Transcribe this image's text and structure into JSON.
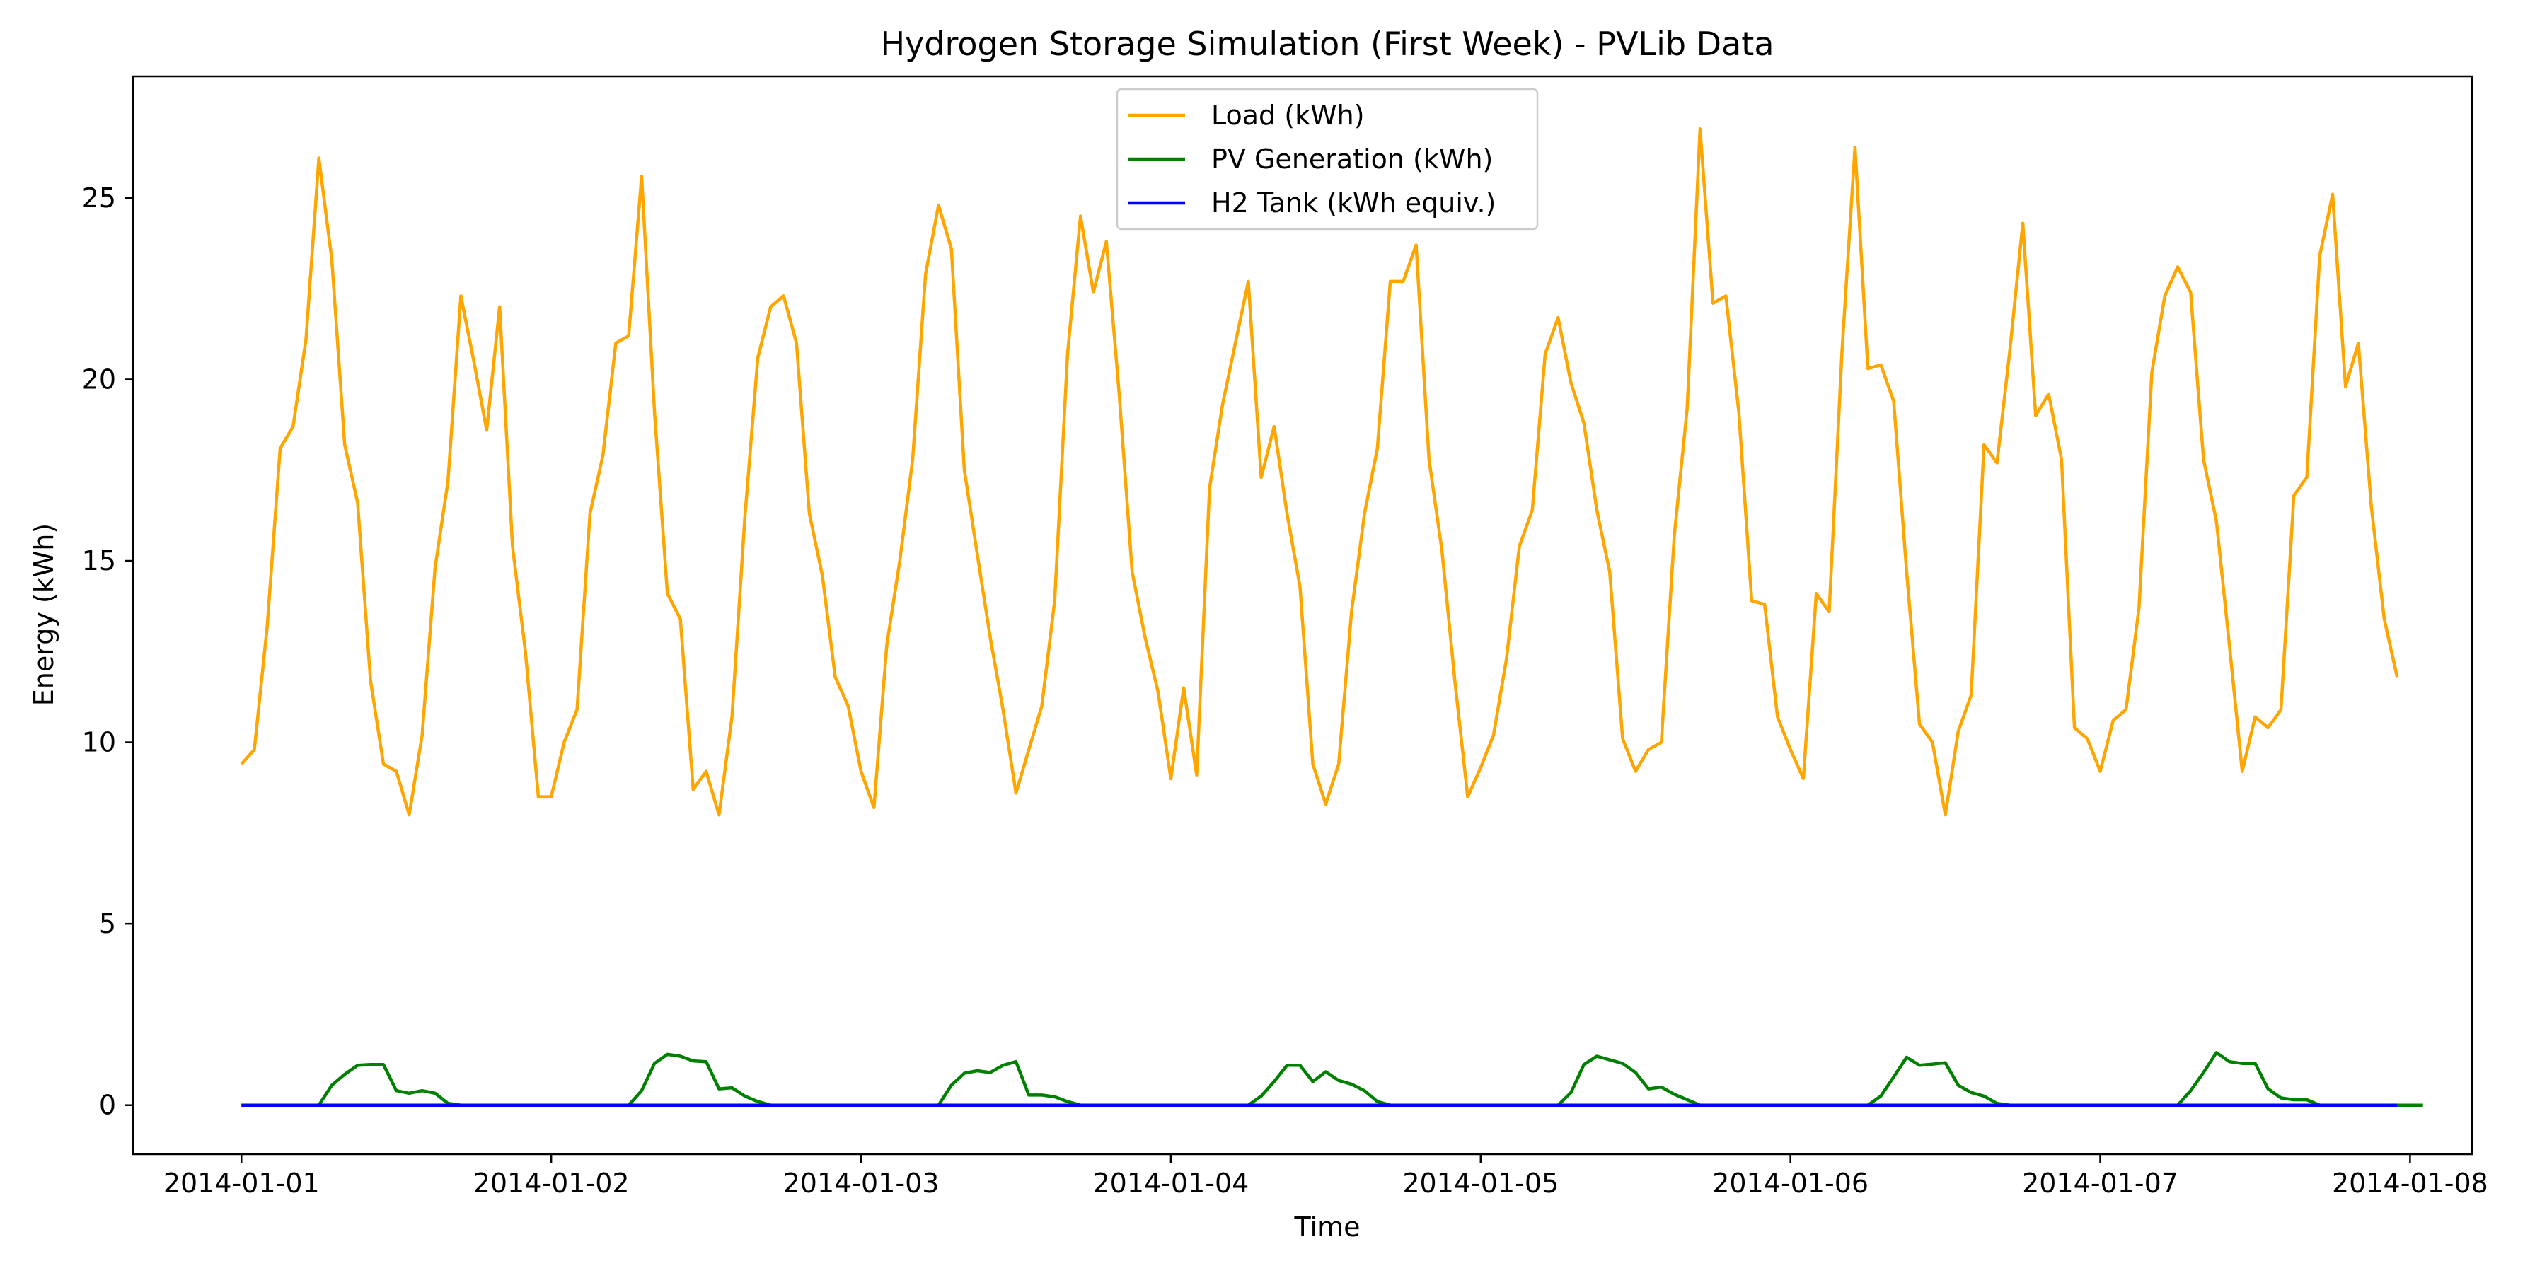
{
  "chart_data": {
    "type": "line",
    "title": "Hydrogen Storage Simulation (First Week) - PVLib Data",
    "xlabel": "Time",
    "ylabel": "Energy (kWh)",
    "xlim": [
      "2013-12-31 15:36",
      "2014-01-08 04:48"
    ],
    "ylim": [
      -1.35,
      28.35
    ],
    "grid": false,
    "legend_position": "top-center",
    "x_ticks": [
      "2014-01-01",
      "2014-01-02",
      "2014-01-03",
      "2014-01-04",
      "2014-01-05",
      "2014-01-06",
      "2014-01-07",
      "2014-01-08"
    ],
    "y_ticks": [
      0,
      5,
      10,
      15,
      20,
      25
    ],
    "x_start": "2014-01-01 00:00",
    "x_step_hours": 1,
    "series": [
      {
        "name": "Load (kWh)",
        "color": "#ffa500",
        "values": [
          9.4,
          9.8,
          13.2,
          18.1,
          18.7,
          21.1,
          26.1,
          23.3,
          18.2,
          16.6,
          11.7,
          9.4,
          9.2,
          8.0,
          10.2,
          14.8,
          17.2,
          22.3,
          20.5,
          18.6,
          22.0,
          15.4,
          12.5,
          8.5,
          8.5,
          10.0,
          10.9,
          16.3,
          17.9,
          21.0,
          21.2,
          25.6,
          19.1,
          14.1,
          13.4,
          8.7,
          9.2,
          8.0,
          10.7,
          16.2,
          20.6,
          22.0,
          22.3,
          21.0,
          16.3,
          14.6,
          11.8,
          11.0,
          9.2,
          8.2,
          12.7,
          15.0,
          17.8,
          22.9,
          24.8,
          23.6,
          17.5,
          15.2,
          12.9,
          10.9,
          8.6,
          9.8,
          11.0,
          13.9,
          20.7,
          24.5,
          22.4,
          23.8,
          19.6,
          14.7,
          12.9,
          11.4,
          9.0,
          11.5,
          9.1,
          17.0,
          19.3,
          21.0,
          22.7,
          17.3,
          18.7,
          16.3,
          14.3,
          9.4,
          8.3,
          9.4,
          13.6,
          16.3,
          18.1,
          22.7,
          22.7,
          23.7,
          17.8,
          15.3,
          11.7,
          8.5,
          9.3,
          10.2,
          12.3,
          15.4,
          16.4,
          20.7,
          21.7,
          19.9,
          18.8,
          16.4,
          14.7,
          10.1,
          9.2,
          9.8,
          10.0,
          15.7,
          19.2,
          26.9,
          22.1,
          22.3,
          19.1,
          13.9,
          13.8,
          10.7,
          9.8,
          9.0,
          14.1,
          13.6,
          20.8,
          26.4,
          20.3,
          20.4,
          19.4,
          14.7,
          10.5,
          10.0,
          8.0,
          10.3,
          11.3,
          18.2,
          17.7,
          20.8,
          24.3,
          19.0,
          19.6,
          17.8,
          10.4,
          10.1,
          9.2,
          10.6,
          10.9,
          13.7,
          20.2,
          22.3,
          23.1,
          22.4,
          17.8,
          16.1,
          12.7,
          9.2,
          10.7,
          10.4,
          10.9,
          16.8,
          17.3,
          23.4,
          25.1,
          19.8,
          21.0,
          16.5,
          13.4,
          11.8
        ]
      },
      {
        "name": "PV Generation (kWh)",
        "color": "#008000",
        "values": [
          0,
          0,
          0,
          0,
          0,
          0,
          0,
          0.55,
          0.85,
          1.1,
          1.12,
          1.12,
          0.4,
          0.33,
          0.4,
          0.33,
          0.05,
          0,
          0,
          0,
          0,
          0,
          0,
          0,
          0,
          0,
          0,
          0,
          0,
          0,
          0,
          0.4,
          1.15,
          1.4,
          1.35,
          1.22,
          1.2,
          0.45,
          0.48,
          0.25,
          0.1,
          0,
          0,
          0,
          0,
          0,
          0,
          0,
          0,
          0,
          0,
          0,
          0,
          0,
          0,
          0.55,
          0.88,
          0.95,
          0.9,
          1.1,
          1.2,
          0.28,
          0.28,
          0.23,
          0.1,
          0,
          0,
          0,
          0,
          0,
          0,
          0,
          0,
          0,
          0,
          0,
          0,
          0,
          0,
          0.25,
          0.65,
          1.1,
          1.1,
          0.65,
          0.92,
          0.68,
          0.58,
          0.4,
          0.1,
          0,
          0,
          0,
          0,
          0,
          0,
          0,
          0,
          0,
          0,
          0,
          0,
          0,
          0,
          0.35,
          1.12,
          1.35,
          1.25,
          1.15,
          0.9,
          0.45,
          0.5,
          0.3,
          0.15,
          0,
          0,
          0,
          0,
          0,
          0,
          0,
          0,
          0,
          0,
          0,
          0,
          0,
          0,
          0.25,
          0.78,
          1.32,
          1.1,
          1.13,
          1.17,
          0.55,
          0.35,
          0.25,
          0.05,
          0,
          0,
          0,
          0,
          0,
          0,
          0,
          0,
          0,
          0,
          0,
          0,
          0,
          0,
          0.4,
          0.9,
          1.45,
          1.2,
          1.15,
          1.15,
          0.45,
          0.2,
          0.15,
          0.15,
          0,
          0,
          0,
          0,
          0,
          0,
          0,
          0,
          0
        ]
      },
      {
        "name": "H2 Tank (kWh equiv.)",
        "color": "#0000ff",
        "values": [
          0,
          0,
          0,
          0,
          0,
          0,
          0,
          0,
          0,
          0,
          0,
          0,
          0,
          0,
          0,
          0,
          0,
          0,
          0,
          0,
          0,
          0,
          0,
          0,
          0,
          0,
          0,
          0,
          0,
          0,
          0,
          0,
          0,
          0,
          0,
          0,
          0,
          0,
          0,
          0,
          0,
          0,
          0,
          0,
          0,
          0,
          0,
          0,
          0,
          0,
          0,
          0,
          0,
          0,
          0,
          0,
          0,
          0,
          0,
          0,
          0,
          0,
          0,
          0,
          0,
          0,
          0,
          0,
          0,
          0,
          0,
          0,
          0,
          0,
          0,
          0,
          0,
          0,
          0,
          0,
          0,
          0,
          0,
          0,
          0,
          0,
          0,
          0,
          0,
          0,
          0,
          0,
          0,
          0,
          0,
          0,
          0,
          0,
          0,
          0,
          0,
          0,
          0,
          0,
          0,
          0,
          0,
          0,
          0,
          0,
          0,
          0,
          0,
          0,
          0,
          0,
          0,
          0,
          0,
          0,
          0,
          0,
          0,
          0,
          0,
          0,
          0,
          0,
          0,
          0,
          0,
          0,
          0,
          0,
          0,
          0,
          0,
          0,
          0,
          0,
          0,
          0,
          0,
          0,
          0,
          0,
          0,
          0,
          0,
          0,
          0,
          0,
          0,
          0,
          0,
          0,
          0,
          0,
          0,
          0,
          0,
          0,
          0,
          0,
          0,
          0,
          0,
          0
        ]
      }
    ]
  }
}
